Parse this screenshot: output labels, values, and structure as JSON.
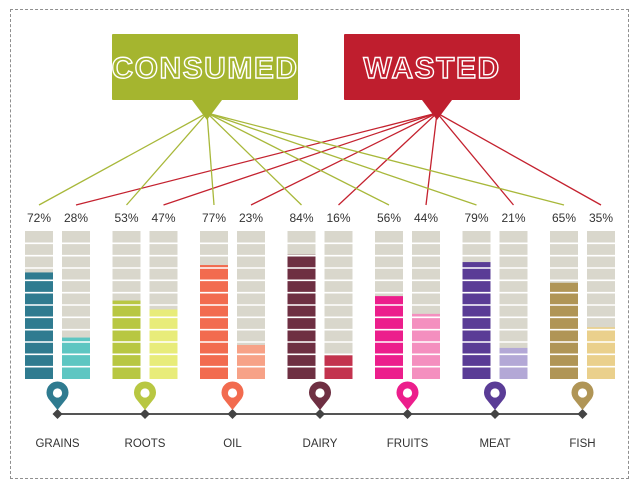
{
  "colors": {
    "consumed_banner": "#a5b52f",
    "wasted_banner": "#bf1e2e",
    "consumed_line": "#a8b83a",
    "wasted_line": "#c4222f",
    "empty_segment": "#d9d7cc",
    "timeline": "#555555"
  },
  "chart_data": {
    "type": "bar",
    "series": [
      {
        "name": "CONSUMED",
        "values": [
          72,
          53,
          77,
          84,
          56,
          79,
          65
        ]
      },
      {
        "name": "WASTED",
        "values": [
          28,
          47,
          23,
          16,
          44,
          21,
          35
        ]
      }
    ],
    "categories": [
      "GRAINS",
      "ROOTS",
      "OIL",
      "DAIRY",
      "FRUITS",
      "MEAT",
      "FISH"
    ],
    "value_labels": {
      "consumed": [
        "72%",
        "53%",
        "77%",
        "84%",
        "56%",
        "79%",
        "65%"
      ],
      "wasted": [
        "28%",
        "47%",
        "23%",
        "16%",
        "44%",
        "21%",
        "35%"
      ]
    },
    "ylim": [
      0,
      100
    ],
    "unit": "%",
    "colors": {
      "consumed": [
        "#2f7b90",
        "#b8c742",
        "#f26b4f",
        "#6e2f42",
        "#ec1e8c",
        "#5a3c96",
        "#b09556"
      ],
      "wasted": [
        "#5ec6c2",
        "#e8ec7a",
        "#f7a287",
        "#c3334e",
        "#f48fbf",
        "#b3a8d6",
        "#ead08c"
      ]
    },
    "category_icon": "map-pin-icon"
  }
}
